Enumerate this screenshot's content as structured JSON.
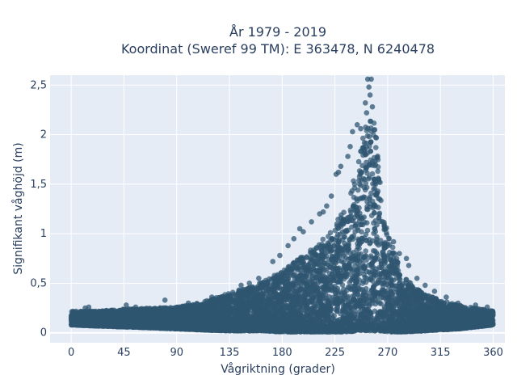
{
  "chart_data": {
    "type": "scatter",
    "title_line1": "År 1979 - 2019",
    "title_line2": "Koordinat (Sweref 99 TM): E 363478, N 6240478",
    "xlabel": "Vågriktning (grader)",
    "ylabel": "Signifikant våghöjd (m)",
    "xlim": [
      -18,
      370
    ],
    "ylim": [
      -0.1,
      2.6
    ],
    "x_ticks": [
      0,
      45,
      90,
      135,
      180,
      225,
      270,
      315,
      360
    ],
    "x_tick_labels": [
      "0",
      "45",
      "90",
      "135",
      "180",
      "225",
      "270",
      "315",
      "360"
    ],
    "y_ticks": [
      0,
      0.5,
      1,
      1.5,
      2,
      2.5
    ],
    "y_tick_labels": [
      "0",
      "0,5",
      "1",
      "1,5",
      "2",
      "2,5"
    ],
    "grid": true,
    "marker_color": "#2f5570",
    "background_color": "#e5ecf6",
    "envelope": {
      "x": [
        0,
        20,
        45,
        70,
        90,
        110,
        135,
        160,
        180,
        200,
        220,
        235,
        245,
        250,
        255,
        260,
        265,
        270,
        285,
        300,
        315,
        330,
        345,
        360
      ],
      "y_max": [
        0.22,
        0.22,
        0.24,
        0.25,
        0.26,
        0.3,
        0.4,
        0.5,
        0.62,
        0.8,
        1.0,
        1.3,
        1.7,
        2.1,
        2.35,
        2.05,
        1.3,
        1.0,
        0.55,
        0.4,
        0.33,
        0.28,
        0.25,
        0.22
      ],
      "y_min": [
        0.08,
        0.07,
        0.06,
        0.05,
        0.04,
        0.03,
        0.02,
        0.02,
        0.01,
        0.01,
        0.01,
        0.01,
        0.02,
        0.02,
        0.02,
        0.02,
        0.02,
        0.01,
        0.01,
        0.02,
        0.03,
        0.04,
        0.06,
        0.08
      ]
    },
    "highlighted_points": [
      {
        "x": 253,
        "y": 2.56
      },
      {
        "x": 256,
        "y": 2.56
      },
      {
        "x": 254,
        "y": 2.48
      },
      {
        "x": 255,
        "y": 2.4
      },
      {
        "x": 251,
        "y": 2.32
      },
      {
        "x": 257,
        "y": 2.28
      },
      {
        "x": 252,
        "y": 2.22
      },
      {
        "x": 244,
        "y": 2.1
      },
      {
        "x": 240,
        "y": 2.03
      },
      {
        "x": 247,
        "y": 2.06
      },
      {
        "x": 238,
        "y": 1.88
      },
      {
        "x": 236,
        "y": 1.78
      },
      {
        "x": 230,
        "y": 1.68
      },
      {
        "x": 226,
        "y": 1.6
      },
      {
        "x": 228,
        "y": 1.62
      },
      {
        "x": 222,
        "y": 1.38
      },
      {
        "x": 218,
        "y": 1.28
      },
      {
        "x": 215,
        "y": 1.22
      },
      {
        "x": 212,
        "y": 1.2
      },
      {
        "x": 205,
        "y": 1.12
      },
      {
        "x": 198,
        "y": 1.02
      },
      {
        "x": 195,
        "y": 1.05
      },
      {
        "x": 190,
        "y": 0.95
      },
      {
        "x": 185,
        "y": 0.88
      },
      {
        "x": 178,
        "y": 0.78
      },
      {
        "x": 172,
        "y": 0.72
      },
      {
        "x": 160,
        "y": 0.55
      },
      {
        "x": 152,
        "y": 0.5
      },
      {
        "x": 145,
        "y": 0.48
      },
      {
        "x": 120,
        "y": 0.36
      },
      {
        "x": 100,
        "y": 0.3
      },
      {
        "x": 80,
        "y": 0.33
      },
      {
        "x": 47,
        "y": 0.28
      },
      {
        "x": 55,
        "y": 0.26
      },
      {
        "x": 15,
        "y": 0.26
      },
      {
        "x": 12,
        "y": 0.25
      },
      {
        "x": 268,
        "y": 1.05
      },
      {
        "x": 275,
        "y": 0.92
      },
      {
        "x": 280,
        "y": 0.8
      },
      {
        "x": 286,
        "y": 0.75
      },
      {
        "x": 288,
        "y": 0.68
      },
      {
        "x": 295,
        "y": 0.55
      },
      {
        "x": 302,
        "y": 0.48
      },
      {
        "x": 310,
        "y": 0.42
      },
      {
        "x": 320,
        "y": 0.36
      },
      {
        "x": 330,
        "y": 0.3
      },
      {
        "x": 345,
        "y": 0.28
      },
      {
        "x": 355,
        "y": 0.26
      }
    ]
  }
}
